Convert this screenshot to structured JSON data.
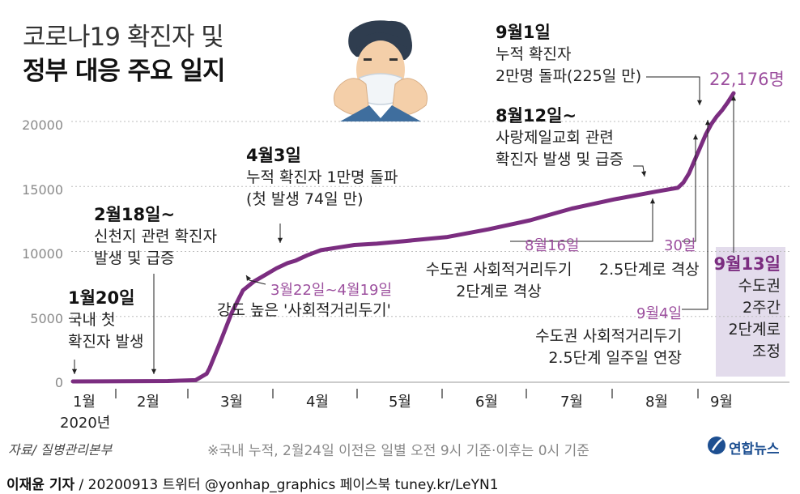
{
  "chart_data": {
    "type": "line",
    "title_line1": "코로나19 확진자 및",
    "title_line2": "정부 대응 주요 일지",
    "y_ticks": [
      "0",
      "5000",
      "10000",
      "15000",
      "20000"
    ],
    "ylim": [
      0,
      22500
    ],
    "x_month_labels": [
      "1월",
      "2월",
      "3월",
      "4월",
      "5월",
      "6월",
      "7월",
      "8월",
      "9월"
    ],
    "x_year_label": "2020년",
    "series": [
      {
        "name": "누적 확진자",
        "color": "#7b2d80",
        "x": [
          1,
          35,
          45,
          49,
          50,
          54,
          58,
          62,
          66,
          70,
          74,
          78,
          81,
          85,
          90,
          96,
          102,
          110,
          120,
          135,
          150,
          165,
          180,
          195,
          210,
          218,
          220,
          222,
          224,
          226,
          228,
          230,
          232,
          234,
          236,
          238
        ],
        "y": [
          1,
          30,
          100,
          600,
          1000,
          3100,
          5300,
          7000,
          7700,
          8200,
          8700,
          9100,
          9300,
          9700,
          10100,
          10300,
          10500,
          10600,
          10800,
          11100,
          11700,
          12400,
          13300,
          14000,
          14600,
          14900,
          15300,
          16000,
          17000,
          18000,
          19000,
          19800,
          20400,
          20900,
          21500,
          22176
        ]
      }
    ],
    "annotations": {
      "jan20": {
        "date": "1월20일",
        "lines": [
          "국내 첫",
          "확진자 발생"
        ]
      },
      "feb18": {
        "date": "2월18일~",
        "lines": [
          "신천지 관련 확진자",
          "발생 및 급증"
        ]
      },
      "apr3": {
        "date": "4월3일",
        "lines": [
          "누적 확진자 1만명 돌파",
          "(첫 발생 74일 만)"
        ]
      },
      "mar22": {
        "date": "3월22일~4월19일",
        "lines": [
          "강도 높은 '사회적거리두기'"
        ]
      },
      "aug12": {
        "date": "8월12일~",
        "lines": [
          "사랑제일교회 관련",
          "확진자 발생 및 급증"
        ]
      },
      "sep1": {
        "date": "9월1일",
        "lines": [
          "누적 확진자",
          "2만명 돌파(225일 만)"
        ]
      },
      "final": {
        "value": "22,176명"
      },
      "aug16": {
        "date": "8월16일",
        "lines": [
          "수도권 사회적거리두기",
          "2단계로 격상"
        ]
      },
      "aug30": {
        "date": "30일",
        "lines": [
          "2.5단계로 격상"
        ]
      },
      "sep4": {
        "date": "9월4일",
        "lines": [
          "수도권 사회적거리두기",
          "2.5단계 일주일 연장"
        ]
      },
      "sep13": {
        "date": "9월13일",
        "lines": [
          "수도권",
          "2주간",
          "2단계로",
          "조정"
        ]
      }
    }
  },
  "footer": {
    "source": "자료/ 질병관리본부",
    "note": "※국내 누적, 2월24일 이전은 일별 오전 9시 기준·이후는 0시 기준",
    "brand": "연합뉴스",
    "byline_name": "이재윤 기자",
    "byline_rest": " / 20200913   트위터 @yonhap_graphics  페이스북 tuney.kr/LeYN1"
  },
  "colors": {
    "line": "#7b2d80",
    "accent_text": "#9c4f9e",
    "highlight_box": "#e3dcec",
    "brand": "#1d4f91"
  }
}
